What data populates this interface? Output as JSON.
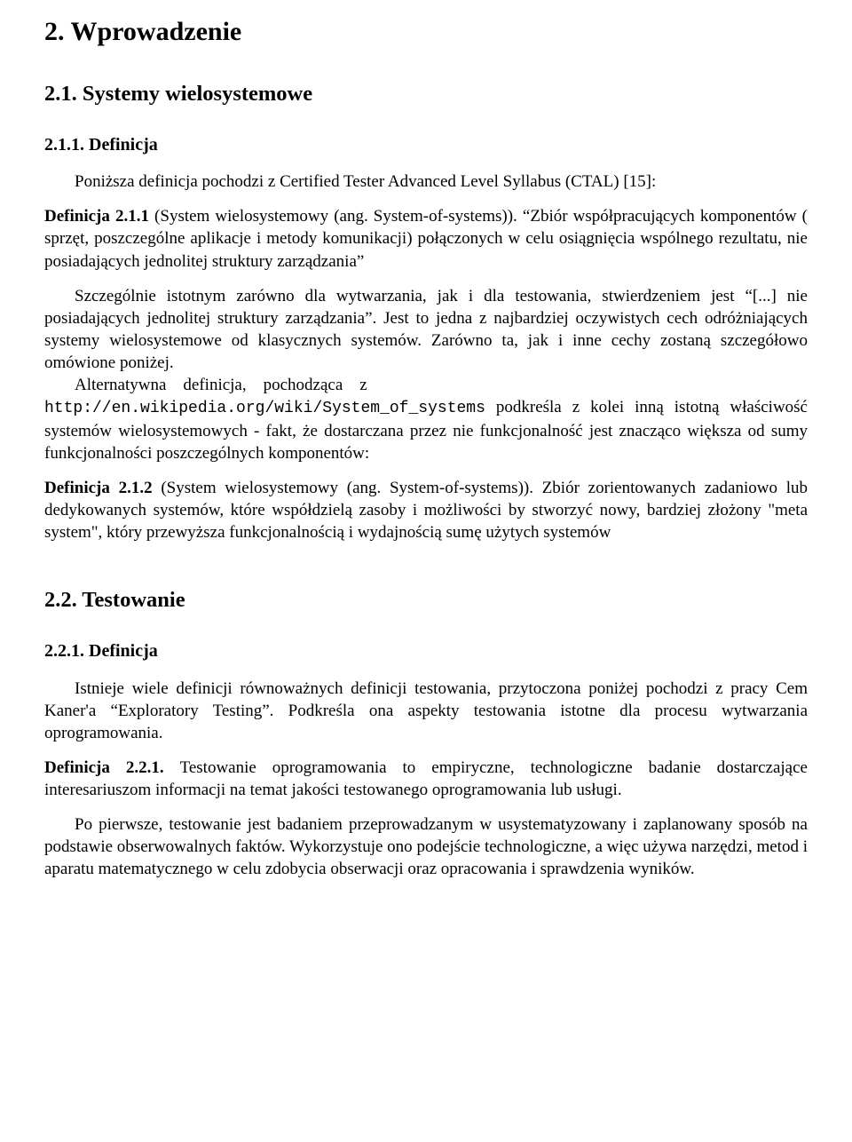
{
  "chapter": {
    "heading": "2. Wprowadzenie"
  },
  "s21": {
    "heading": "2.1. Systemy wielosystemowe",
    "sub": "2.1.1. Definicja",
    "p_intro": "Poniższa definicja pochodzi z Certified Tester Advanced Level Syllabus (CTAL) [15]:",
    "def211_label": "Definicja 2.1.1 ",
    "def211_title": "(System wielosystemowy (ang. System-of-systems)). ",
    "def211_body": "“Zbiór współpracujących komponentów ( sprzęt, poszczególne aplikacje i metody komunikacji) połączonych w celu osiągnięcia wspólnego rezultatu, nie posiadających jednolitej struktury zarządzania”",
    "p_para1": "Szczególnie istotnym zarówno dla wytwarzania, jak i dla testowania, stwierdzeniem jest “[...] nie posiadających jednolitej struktury zarządzania”. Jest to jedna z najbardziej oczywistych cech odróżniających systemy wielosystemowe od klasycznych systemów. Zarówno ta, jak i inne cechy zostaną szczegółowo omówione poniżej.",
    "p_para2_a": "Alternatywna definicja, pochodząca z ",
    "p_para2_url1": "http://en.wikipedia.org/wiki/",
    "p_para2_url2": "System_of_systems",
    "p_para2_b": " podkreśla z kolei inną istotną właściwość systemów wielosystemowych - fakt, że dostarczana przez nie funkcjonalność jest znacząco większa od sumy funkcjonalności poszczególnych komponentów:",
    "def212_label": "Definicja 2.1.2 ",
    "def212_title": "(System wielosystemowy (ang. System-of-systems)). ",
    "def212_body": "Zbiór zorientowanych zadaniowo lub dedykowanych systemów, które współdzielą zasoby i możliwości by stworzyć nowy, bardziej złożony \"meta system\", który przewyższa funkcjonalnością i wydajnością sumę użytych systemów"
  },
  "s22": {
    "heading": "2.2. Testowanie",
    "sub": "2.2.1. Definicja",
    "p_intro": "Istnieje wiele definicji równoważnych definicji testowania, przytoczona poniżej pochodzi z pracy Cem Kaner'a “Exploratory Testing”. Podkreśla ona aspekty testowania istotne dla procesu wytwarzania oprogramowania.",
    "def221_label": "Definicja 2.2.1. ",
    "def221_body": "Testowanie oprogramowania to empiryczne, technologiczne badanie dostarczające interesariuszom informacji na temat jakości testowanego oprogramowania lub usługi.",
    "p_para1": "Po pierwsze, testowanie jest badaniem przeprowadzanym w usystematyzowany i zaplanowany sposób na podstawie obserwowalnych faktów. Wykorzystuje ono podejście technologiczne, a więc używa narzędzi, metod i aparatu matematycznego w celu zdobycia obserwacji oraz opracowania i sprawdzenia wyników."
  }
}
